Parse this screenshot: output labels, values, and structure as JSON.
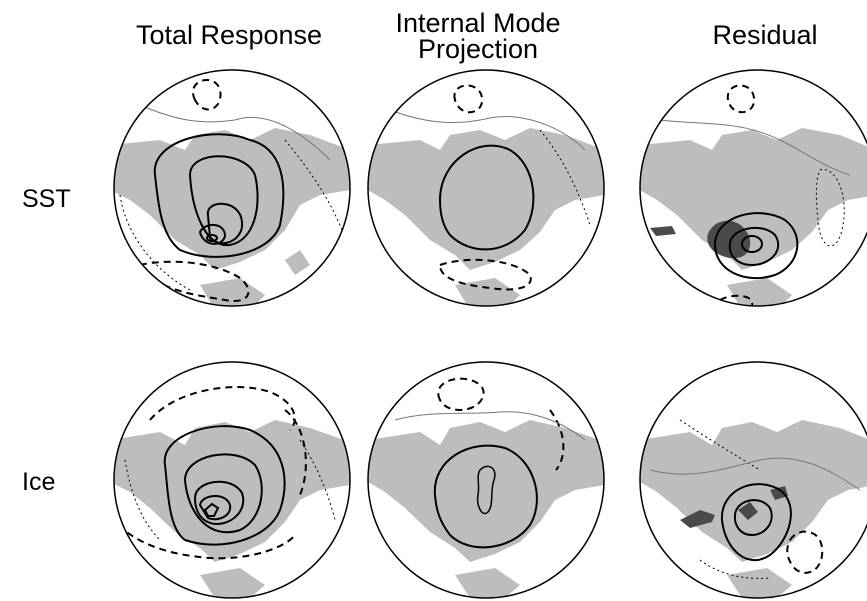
{
  "figure": {
    "columns": [
      {
        "title": "Total Response"
      },
      {
        "title": "Internal Mode Projection"
      },
      {
        "title": "Residual"
      }
    ],
    "rows": [
      {
        "label": "SST"
      },
      {
        "label": "Ice"
      }
    ]
  },
  "colors": {
    "land": "#bdbdbd",
    "ocean": "#ffffff",
    "outline": "#000000",
    "residual_shade": "#4a4a4a"
  },
  "contour_styles": [
    "positive-solid",
    "negative-dashed",
    "zero-dotted",
    "thin-gray"
  ]
}
